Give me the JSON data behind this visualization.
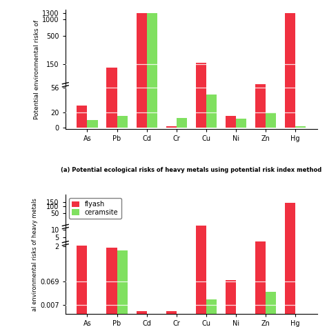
{
  "categories": [
    "As",
    "Pb",
    "Cd",
    "Cr",
    "Cu",
    "Ni",
    "Zn",
    "Hg"
  ],
  "top_flyash": [
    27,
    130,
    1300,
    2,
    160,
    15,
    65,
    1300
  ],
  "top_ceramsite": [
    10,
    15,
    1300,
    13,
    42,
    12,
    20,
    2
  ],
  "bot_flyash": [
    2.2,
    1.8,
    0.004,
    0.004,
    15,
    0.08,
    3.2,
    140
  ],
  "bot_ceramsite": [
    0.003,
    1.4,
    0.003,
    0.003,
    0.012,
    0.003,
    0.025,
    0.003
  ],
  "flyash_color": "#f03040",
  "ceramsite_color": "#80e060",
  "top_yticks": [
    0,
    20,
    56,
    150,
    500,
    1000,
    1300
  ],
  "top_yticklabels": [
    "0",
    "20",
    "56",
    "150",
    "500",
    "1000",
    "1300"
  ],
  "bot_yticks": [
    0.007,
    0.069,
    2,
    5,
    10,
    50,
    100,
    150
  ],
  "bot_yticklabels": [
    "0.007",
    "0.069",
    "2",
    "5",
    "10",
    "50",
    "100",
    "150"
  ],
  "top_ylabel": "Potential environmental risks of",
  "bot_ylabel": "al environmental risks of heavy metals",
  "top_caption": "(a) Potential ecological risks of heavy metals using potential risk index method",
  "legend_flyash": "flyash",
  "legend_ceramsite": "ceramsite",
  "top_hlines": [
    20,
    56,
    150
  ],
  "bot_hlines": [
    0.069,
    0.007
  ],
  "background": "#ffffff"
}
